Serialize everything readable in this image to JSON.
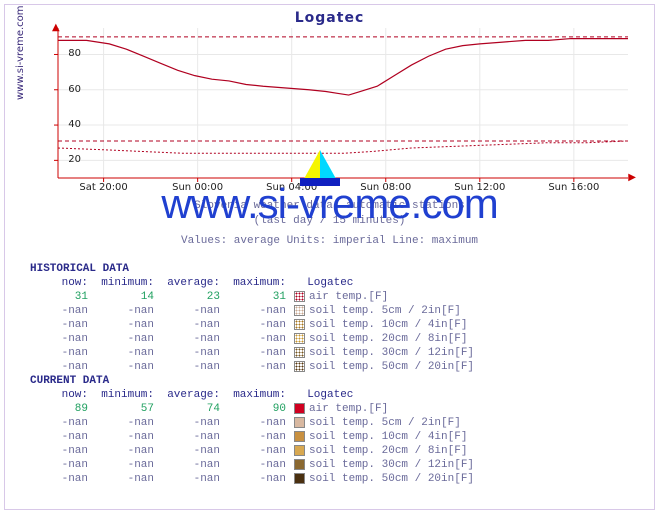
{
  "title": "Logatec",
  "ylabel_text": "www.si-vreme.com",
  "captions": {
    "line1": "Slovenia weather data: automatic stations",
    "line2": "(last day / 15 minutes)",
    "line3": "Values: average  Units: imperial  Line: maximum"
  },
  "watermark": "www.si-vreme.com",
  "chart": {
    "type": "line",
    "background_color": "#ffffff",
    "grid_color": "#e8e8e8",
    "axis_color": "#cc0000",
    "ylim": [
      10,
      95
    ],
    "yticks": [
      20,
      40,
      60,
      80
    ],
    "xticks": [
      "Sat 20:00",
      "Sun 00:00",
      "Sun 04:00",
      "Sun 08:00",
      "Sun 12:00",
      "Sun 16:00"
    ],
    "xtick_pos": [
      0.08,
      0.245,
      0.41,
      0.575,
      0.74,
      0.905
    ],
    "series": [
      {
        "name": "air-temp-avg",
        "color": "#b00020",
        "width": 1.2,
        "dash": "none",
        "points": [
          [
            0.0,
            88
          ],
          [
            0.05,
            88
          ],
          [
            0.09,
            86
          ],
          [
            0.12,
            83
          ],
          [
            0.15,
            79
          ],
          [
            0.18,
            75
          ],
          [
            0.21,
            71
          ],
          [
            0.24,
            68
          ],
          [
            0.27,
            66
          ],
          [
            0.3,
            65
          ],
          [
            0.33,
            63
          ],
          [
            0.36,
            62
          ],
          [
            0.4,
            61
          ],
          [
            0.44,
            60
          ],
          [
            0.47,
            59
          ],
          [
            0.49,
            58
          ],
          [
            0.51,
            57
          ],
          [
            0.53,
            59
          ],
          [
            0.56,
            62
          ],
          [
            0.59,
            68
          ],
          [
            0.62,
            74
          ],
          [
            0.65,
            79
          ],
          [
            0.68,
            83
          ],
          [
            0.71,
            85
          ],
          [
            0.74,
            86
          ],
          [
            0.78,
            87
          ],
          [
            0.82,
            88
          ],
          [
            0.86,
            88
          ],
          [
            0.9,
            89
          ],
          [
            0.95,
            89
          ],
          [
            1.0,
            89
          ]
        ]
      },
      {
        "name": "air-temp-max",
        "color": "#b00020",
        "width": 1,
        "dash": "4,3",
        "points": [
          [
            0.0,
            90
          ],
          [
            1.0,
            90
          ]
        ]
      },
      {
        "name": "secondary-avg",
        "color": "#b00020",
        "width": 1,
        "dash": "2,2",
        "points": [
          [
            0.0,
            27
          ],
          [
            0.08,
            26
          ],
          [
            0.15,
            25
          ],
          [
            0.22,
            24
          ],
          [
            0.3,
            24
          ],
          [
            0.38,
            24
          ],
          [
            0.45,
            24
          ],
          [
            0.5,
            24
          ],
          [
            0.55,
            25
          ],
          [
            0.62,
            27
          ],
          [
            0.7,
            28
          ],
          [
            0.78,
            29
          ],
          [
            0.86,
            30
          ],
          [
            0.93,
            30
          ],
          [
            1.0,
            31
          ]
        ]
      },
      {
        "name": "secondary-max",
        "color": "#b00020",
        "width": 1,
        "dash": "4,3",
        "points": [
          [
            0.0,
            31
          ],
          [
            1.0,
            31
          ]
        ]
      }
    ]
  },
  "sections": [
    {
      "title": "HISTORICAL DATA",
      "columns": [
        "now:",
        "minimum:",
        "average:",
        "maximum:",
        "  Logatec"
      ],
      "rows": [
        {
          "vals": [
            "31",
            "14",
            "23",
            "31"
          ],
          "num": true,
          "swatch": "#b00020",
          "swatch_pattern": "dots",
          "label": "air temp.[F]"
        },
        {
          "vals": [
            "-nan",
            "-nan",
            "-nan",
            "-nan"
          ],
          "num": false,
          "swatch": "#c8a890",
          "swatch_pattern": "dots",
          "label": "soil temp. 5cm / 2in[F]"
        },
        {
          "vals": [
            "-nan",
            "-nan",
            "-nan",
            "-nan"
          ],
          "num": false,
          "swatch": "#a87820",
          "swatch_pattern": "dots",
          "label": "soil temp. 10cm / 4in[F]"
        },
        {
          "vals": [
            "-nan",
            "-nan",
            "-nan",
            "-nan"
          ],
          "num": false,
          "swatch": "#c89830",
          "swatch_pattern": "dots",
          "label": "soil temp. 20cm / 8in[F]"
        },
        {
          "vals": [
            "-nan",
            "-nan",
            "-nan",
            "-nan"
          ],
          "num": false,
          "swatch": "#785820",
          "swatch_pattern": "dots",
          "label": "soil temp. 30cm / 12in[F]"
        },
        {
          "vals": [
            "-nan",
            "-nan",
            "-nan",
            "-nan"
          ],
          "num": false,
          "swatch": "#5a3a10",
          "swatch_pattern": "dots",
          "label": "soil temp. 50cm / 20in[F]"
        }
      ]
    },
    {
      "title": "CURRENT DATA",
      "columns": [
        "now:",
        "minimum:",
        "average:",
        "maximum:",
        "  Logatec"
      ],
      "rows": [
        {
          "vals": [
            "89",
            "57",
            "74",
            "90"
          ],
          "num": true,
          "swatch": "#d00020",
          "swatch_pattern": "solid",
          "label": "air temp.[F]"
        },
        {
          "vals": [
            "-nan",
            "-nan",
            "-nan",
            "-nan"
          ],
          "num": false,
          "swatch": "#d8b8a0",
          "swatch_pattern": "solid",
          "label": "soil temp. 5cm / 2in[F]"
        },
        {
          "vals": [
            "-nan",
            "-nan",
            "-nan",
            "-nan"
          ],
          "num": false,
          "swatch": "#c89040",
          "swatch_pattern": "solid",
          "label": "soil temp. 10cm / 4in[F]"
        },
        {
          "vals": [
            "-nan",
            "-nan",
            "-nan",
            "-nan"
          ],
          "num": false,
          "swatch": "#d8a850",
          "swatch_pattern": "solid",
          "label": "soil temp. 20cm / 8in[F]"
        },
        {
          "vals": [
            "-nan",
            "-nan",
            "-nan",
            "-nan"
          ],
          "num": false,
          "swatch": "#8a6830",
          "swatch_pattern": "solid",
          "label": "soil temp. 30cm / 12in[F]"
        },
        {
          "vals": [
            "-nan",
            "-nan",
            "-nan",
            "-nan"
          ],
          "num": false,
          "swatch": "#4a3010",
          "swatch_pattern": "solid",
          "label": "soil temp. 50cm / 20in[F]"
        }
      ]
    }
  ]
}
